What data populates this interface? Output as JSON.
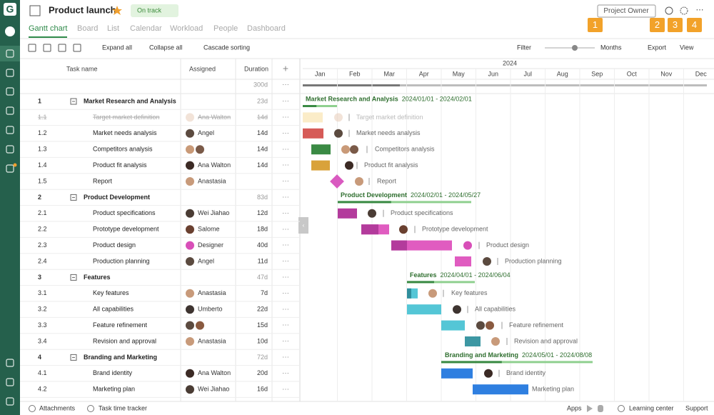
{
  "header": {
    "logo": "G",
    "title": "Product launch",
    "status": "On track",
    "role": "Project Owner",
    "badges": [
      "1",
      "2",
      "3",
      "4"
    ]
  },
  "tabs": [
    "Gantt chart",
    "Board",
    "List",
    "Calendar",
    "Workload",
    "People",
    "Dashboard"
  ],
  "toolbar": {
    "expand": "Expand all",
    "collapse": "Collapse all",
    "cascade": "Cascade sorting",
    "filter": "Filter",
    "zoom": "Months",
    "export": "Export",
    "view": "View"
  },
  "table": {
    "columns": [
      "Task name",
      "Assigned",
      "Duration"
    ],
    "total": "300d",
    "rows": [
      {
        "id": "1",
        "name": "Market Research and Analysis",
        "duration": "23d",
        "group": true,
        "dates": "2024/01/01 - 2024/02/01"
      },
      {
        "id": "1.1",
        "name": "Target market definition",
        "assigned": "Ana Walton",
        "avatars": [
          "#e6c7b2"
        ],
        "duration": "14d",
        "done": true
      },
      {
        "id": "1.2",
        "name": "Market needs analysis",
        "assigned": "Angel",
        "avatars": [
          "#5b4a3f"
        ],
        "duration": "14d"
      },
      {
        "id": "1.3",
        "name": "Competitors analysis",
        "avatars": [
          "#c99a78",
          "#7a5a48"
        ],
        "duration": "14d"
      },
      {
        "id": "1.4",
        "name": "Product fit analysis",
        "assigned": "Ana Walton",
        "avatars": [
          "#3b2a24"
        ],
        "duration": "14d"
      },
      {
        "id": "1.5",
        "name": "Report",
        "assigned": "Anastasia",
        "avatars": [
          "#c89a7a"
        ]
      },
      {
        "id": "2",
        "name": "Product Development",
        "duration": "83d",
        "group": true,
        "dates": "2024/02/01 - 2024/05/27"
      },
      {
        "id": "2.1",
        "name": "Product specifications",
        "assigned": "Wei Jiahao",
        "avatars": [
          "#4a3c34"
        ],
        "duration": "12d"
      },
      {
        "id": "2.2",
        "name": "Prototype development",
        "assigned": "Salome",
        "avatars": [
          "#6a4030"
        ],
        "duration": "18d"
      },
      {
        "id": "2.3",
        "name": "Product design",
        "assigned": "Designer",
        "avatars": [
          "#d84fb8"
        ],
        "duration": "40d"
      },
      {
        "id": "2.4",
        "name": "Production planning",
        "assigned": "Angel",
        "avatars": [
          "#5b4a3f"
        ],
        "duration": "11d"
      },
      {
        "id": "3",
        "name": "Features",
        "duration": "47d",
        "group": true,
        "dates": "2024/04/01 - 2024/06/04"
      },
      {
        "id": "3.1",
        "name": "Key features",
        "assigned": "Anastasia",
        "avatars": [
          "#c89a7a"
        ],
        "duration": "7d"
      },
      {
        "id": "3.2",
        "name": "All capabilities",
        "assigned": "Umberto",
        "avatars": [
          "#3e3430"
        ],
        "duration": "22d"
      },
      {
        "id": "3.3",
        "name": "Feature refinement",
        "avatars": [
          "#5b4a3f",
          "#8a5a40"
        ],
        "duration": "15d"
      },
      {
        "id": "3.4",
        "name": "Revision and approval",
        "assigned": "Anastasia",
        "avatars": [
          "#c89a7a"
        ],
        "duration": "10d"
      },
      {
        "id": "4",
        "name": "Branding and Marketing",
        "duration": "72d",
        "group": true,
        "dates": "2024/05/01 - 2024/08/08"
      },
      {
        "id": "4.1",
        "name": "Brand identity",
        "assigned": "Ana Walton",
        "avatars": [
          "#3b2a24"
        ],
        "duration": "20d"
      },
      {
        "id": "4.2",
        "name": "Marketing plan",
        "assigned": "Wei Jiahao",
        "avatars": [
          "#4a3c34"
        ],
        "duration": "16d"
      }
    ]
  },
  "timeline": {
    "year": "2024",
    "months": [
      "Jan",
      "Feb",
      "Mar",
      "Apr",
      "May",
      "Jun",
      "Jul",
      "Aug",
      "Sep",
      "Oct",
      "Nov",
      "Dec"
    ]
  },
  "footer": {
    "attachments": "Attachments",
    "tracker": "Task time tracker",
    "apps": "Apps",
    "learning": "Learning center",
    "support": "Support"
  }
}
